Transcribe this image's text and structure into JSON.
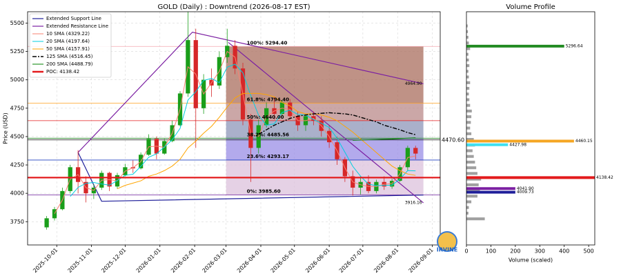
{
  "logo": "IRVINE",
  "chart_data": [
    {
      "type": "candlestick",
      "title": "GOLD (Daily) : Downtrend (2026-08-17 EST)",
      "y_label": "Price (USD)",
      "x": [
        "2025-09-22",
        "2025-09-29",
        "2025-10-06",
        "2025-10-13",
        "2025-10-20",
        "2025-10-27",
        "2025-11-03",
        "2025-11-10",
        "2025-11-17",
        "2025-11-24",
        "2025-12-01",
        "2025-12-08",
        "2025-12-15",
        "2025-12-22",
        "2025-12-29",
        "2026-01-05",
        "2026-01-12",
        "2026-01-19",
        "2026-01-26",
        "2026-02-02",
        "2026-02-09",
        "2026-02-16",
        "2026-02-23",
        "2026-03-02",
        "2026-03-09",
        "2026-03-16",
        "2026-03-23",
        "2026-03-30",
        "2026-04-06",
        "2026-04-13",
        "2026-04-20",
        "2026-04-27",
        "2026-05-04",
        "2026-05-11",
        "2026-05-18",
        "2026-05-25",
        "2026-06-01",
        "2026-06-08",
        "2026-06-15",
        "2026-06-22",
        "2026-06-29",
        "2026-07-06",
        "2026-07-13",
        "2026-07-20",
        "2026-07-27",
        "2026-08-03",
        "2026-08-10",
        "2026-08-17"
      ],
      "open": [
        3700,
        3780,
        3860,
        4020,
        4230,
        4100,
        4000,
        4050,
        4180,
        4060,
        4160,
        4230,
        4220,
        4340,
        4480,
        4350,
        4460,
        4600,
        4880,
        5350,
        4750,
        5000,
        4950,
        5200,
        5300,
        5100,
        4650,
        4400,
        4600,
        4750,
        4700,
        4800,
        4680,
        4600,
        4680,
        4640,
        4550,
        4450,
        4300,
        4150,
        4050,
        4100,
        4020,
        4100,
        4060,
        4110,
        4230,
        4400
      ],
      "high": [
        3800,
        3880,
        4050,
        4250,
        4380,
        4150,
        4080,
        4200,
        4190,
        4180,
        4260,
        4290,
        4360,
        4520,
        4500,
        4480,
        4640,
        4900,
        5600,
        5450,
        5050,
        5100,
        5250,
        5450,
        5350,
        5150,
        4700,
        4650,
        4800,
        4850,
        4820,
        4830,
        4720,
        4700,
        4720,
        4680,
        4600,
        4500,
        4320,
        4200,
        4150,
        4160,
        4120,
        4150,
        4130,
        4250,
        4420,
        4420
      ],
      "low": [
        3680,
        3760,
        3850,
        4000,
        4000,
        3920,
        3950,
        4030,
        4020,
        4040,
        4150,
        4180,
        4210,
        4330,
        4300,
        4340,
        4450,
        4590,
        4850,
        4400,
        4700,
        4850,
        4920,
        5150,
        5050,
        4600,
        4100,
        4350,
        4580,
        4650,
        4680,
        4650,
        4550,
        4550,
        4600,
        4500,
        4400,
        4250,
        4100,
        3980,
        3990,
        4000,
        4000,
        4030,
        4040,
        4100,
        4200,
        4300
      ],
      "close": [
        3780,
        3860,
        4020,
        4230,
        4100,
        4000,
        4050,
        4180,
        4060,
        4160,
        4230,
        4220,
        4340,
        4480,
        4350,
        4460,
        4600,
        4880,
        5350,
        4750,
        5000,
        4950,
        5200,
        5300,
        5100,
        4650,
        4400,
        4600,
        4750,
        4700,
        4800,
        4680,
        4600,
        4680,
        4640,
        4550,
        4450,
        4300,
        4150,
        4050,
        4100,
        4020,
        4100,
        4060,
        4110,
        4230,
        4400,
        4350
      ],
      "up_color": "#1a9e1a",
      "down_color": "#d62728",
      "series": [
        {
          "name": "10 SMA (4329.22)",
          "color": "#fa8072",
          "values": [
            null,
            3820,
            3940,
            4125,
            4165,
            4050,
            4025,
            4115,
            4120,
            4110,
            4195,
            4225,
            4280,
            4410,
            4415,
            4405,
            4530,
            4740,
            5115,
            5050,
            4875,
            4975,
            5075,
            5250,
            5200,
            4875,
            4525,
            4500,
            4675,
            4725,
            4750,
            4740,
            4640,
            4640,
            4660,
            4595,
            4500,
            4375,
            4225,
            4100,
            4075,
            4060,
            4060,
            4080,
            4085,
            4170,
            4315,
            4329.22
          ]
        },
        {
          "name": "20 SMA (4197.64)",
          "color": "#00cfe0",
          "values": [
            null,
            null,
            null,
            3972,
            4052,
            4088,
            4095,
            4082,
            4072,
            4112,
            4158,
            4168,
            4238,
            4318,
            4348,
            4408,
            4472,
            4572,
            4822,
            4895,
            4995,
            5012,
            4975,
            5112,
            5138,
            5062,
            4862,
            4688,
            4600,
            4612,
            4712,
            4732,
            4695,
            4690,
            4650,
            4618,
            4580,
            4485,
            4362,
            4238,
            4150,
            4080,
            4068,
            4070,
            4072,
            4125,
            4200,
            4197.64
          ]
        },
        {
          "name": "50 SMA (4157.91)",
          "color": "#ffa500",
          "values": [
            null,
            null,
            null,
            null,
            null,
            null,
            null,
            null,
            null,
            4040,
            4070,
            4090,
            4110,
            4150,
            4170,
            4200,
            4240,
            4300,
            4400,
            4460,
            4530,
            4590,
            4670,
            4760,
            4840,
            4880,
            4880,
            4880,
            4870,
            4850,
            4800,
            4770,
            4720,
            4700,
            4700,
            4690,
            4670,
            4640,
            4590,
            4540,
            4480,
            4420,
            4360,
            4300,
            4240,
            4200,
            4170,
            4157.91
          ]
        },
        {
          "name": "125 SMA (4516.45)",
          "color": "#000000",
          "style": "dashdot",
          "values": [
            null,
            null,
            null,
            null,
            null,
            null,
            null,
            null,
            null,
            null,
            null,
            null,
            null,
            null,
            null,
            null,
            null,
            null,
            null,
            null,
            null,
            null,
            null,
            null,
            null,
            null,
            null,
            4520,
            4560,
            4600,
            4630,
            4660,
            4680,
            4690,
            4700,
            4705,
            4710,
            4705,
            4700,
            4690,
            4670,
            4650,
            4630,
            4600,
            4580,
            4560,
            4535,
            4516.45
          ]
        },
        {
          "name": "200 SMA (4488.79)",
          "color": "#008000",
          "values": [
            null,
            null,
            null,
            null,
            null,
            null,
            null,
            null,
            null,
            null,
            null,
            null,
            null,
            null,
            null,
            null,
            null,
            null,
            null,
            null,
            null,
            null,
            null,
            null,
            null,
            null,
            null,
            null,
            null,
            null,
            null,
            null,
            null,
            null,
            null,
            null,
            null,
            null,
            null,
            4468,
            4470,
            4472,
            4474,
            4476,
            4478,
            4482,
            4486,
            4488.79
          ]
        }
      ],
      "trend_lines": [
        {
          "name": "Extended Support Line",
          "color": "#1f1f9a",
          "x": [
            "2025-10-20",
            "2025-11-10",
            "2026-08-24"
          ],
          "values": [
            4360,
            3930,
            3985
          ]
        },
        {
          "name": "Extended Resistance Line",
          "color": "#7b1fa2",
          "x": [
            "2025-10-20",
            "2026-01-30",
            "2026-08-24"
          ],
          "values": [
            4360,
            5420,
            4964.9
          ],
          "value_labels": [
            null,
            null,
            "4964.90"
          ]
        },
        {
          "color": "#7b1fa2",
          "x": [
            "2026-03-03",
            "2026-08-24"
          ],
          "values": [
            5330,
            3916.16
          ],
          "value_labels": [
            null,
            "3916.16"
          ]
        }
      ],
      "fib": {
        "x": [
          "2026-03-01",
          "2026-08-24"
        ],
        "levels": [
          {
            "value": 5294.4,
            "label": "100%: 5294.40",
            "color": "#f4a6b0"
          },
          {
            "value": 4794.4,
            "label": "61.8%: 4794.40",
            "color": "#ff9f1c"
          },
          {
            "value": 4640,
            "label": "50%: 4640.00",
            "color": "#e31a1c"
          },
          {
            "value": 4485.56,
            "label": "38.2%: 4485.56",
            "color": "#1a7f1a"
          },
          {
            "value": 4293.17,
            "label": "23.6%: 4293.17",
            "color": "#1f3fbf"
          },
          {
            "value": 3985.6,
            "label": "0%: 3985.60",
            "color": "#6a1b9a"
          }
        ],
        "zone_colors": [
          "#a96e5e",
          "#b98a8a",
          "#8e95b8",
          "#9a8ee6",
          "#dcc2dc"
        ]
      },
      "level_lines": [
        {
          "value": 4470.6,
          "label": "4470.60",
          "color": "#000000"
        }
      ],
      "poc": {
        "name": "POC: 4138.42",
        "value": 4138.42,
        "color": "#e31a1c"
      },
      "xlim": [
        "2025-09-05",
        "2026-09-08"
      ],
      "ylim": [
        3545,
        5600
      ],
      "xticks": [
        "2025-10-01",
        "2025-11-01",
        "2025-12-01",
        "2026-01-01",
        "2026-02-01",
        "2026-03-01",
        "2026-04-01",
        "2026-05-01",
        "2026-06-01",
        "2026-07-01",
        "2026-08-01",
        "2026-09-01"
      ],
      "yticks": [
        3750,
        4000,
        4250,
        4500,
        4750,
        5000,
        5250,
        5500
      ],
      "grid": true,
      "legend": "upper left"
    },
    {
      "type": "volume_profile",
      "title": "Volume Profile",
      "x_label": "Volume (scaled)",
      "prices": [
        3775,
        3825,
        3875,
        3925,
        3975,
        4025,
        4075,
        4125,
        4175,
        4225,
        4275,
        4325,
        4375,
        4425,
        4475,
        4525,
        4575,
        4625,
        4675,
        4725,
        4775,
        4825,
        4875,
        4925,
        4975,
        5025,
        5075,
        5125,
        5175,
        5225,
        5275,
        5325,
        5375,
        5425,
        5475
      ],
      "volumes": [
        75,
        8,
        10,
        20,
        45,
        55,
        50,
        60,
        45,
        40,
        35,
        30,
        25,
        35,
        30,
        20,
        15,
        18,
        20,
        22,
        15,
        12,
        10,
        12,
        15,
        10,
        8,
        12,
        10,
        8,
        15,
        10,
        8,
        6,
        5
      ],
      "bar_color": "#a0a0a0",
      "highlights": [
        {
          "price": 5296.64,
          "volume": 400,
          "color": "#228b22",
          "label": "5296.64"
        },
        {
          "price": 4460.15,
          "volume": 440,
          "color": "#f5a623",
          "label": "4460.15"
        },
        {
          "price": 4427.98,
          "volume": 170,
          "color": "#40e0f0",
          "label": "4427.98"
        },
        {
          "price": 4138.42,
          "volume": 525,
          "color": "#e31a1c",
          "label": "4138.42"
        },
        {
          "price": 4041.9,
          "volume": 200,
          "color": "#7b1fa2",
          "label": "4041.90"
        },
        {
          "price": 4009.73,
          "volume": 200,
          "color": "#1f1f9a",
          "label": "4009.73"
        }
      ],
      "xlim": [
        0,
        525
      ],
      "ylim": [
        3545,
        5600
      ],
      "xticks": [
        0,
        100,
        200,
        300,
        400,
        500
      ]
    }
  ]
}
